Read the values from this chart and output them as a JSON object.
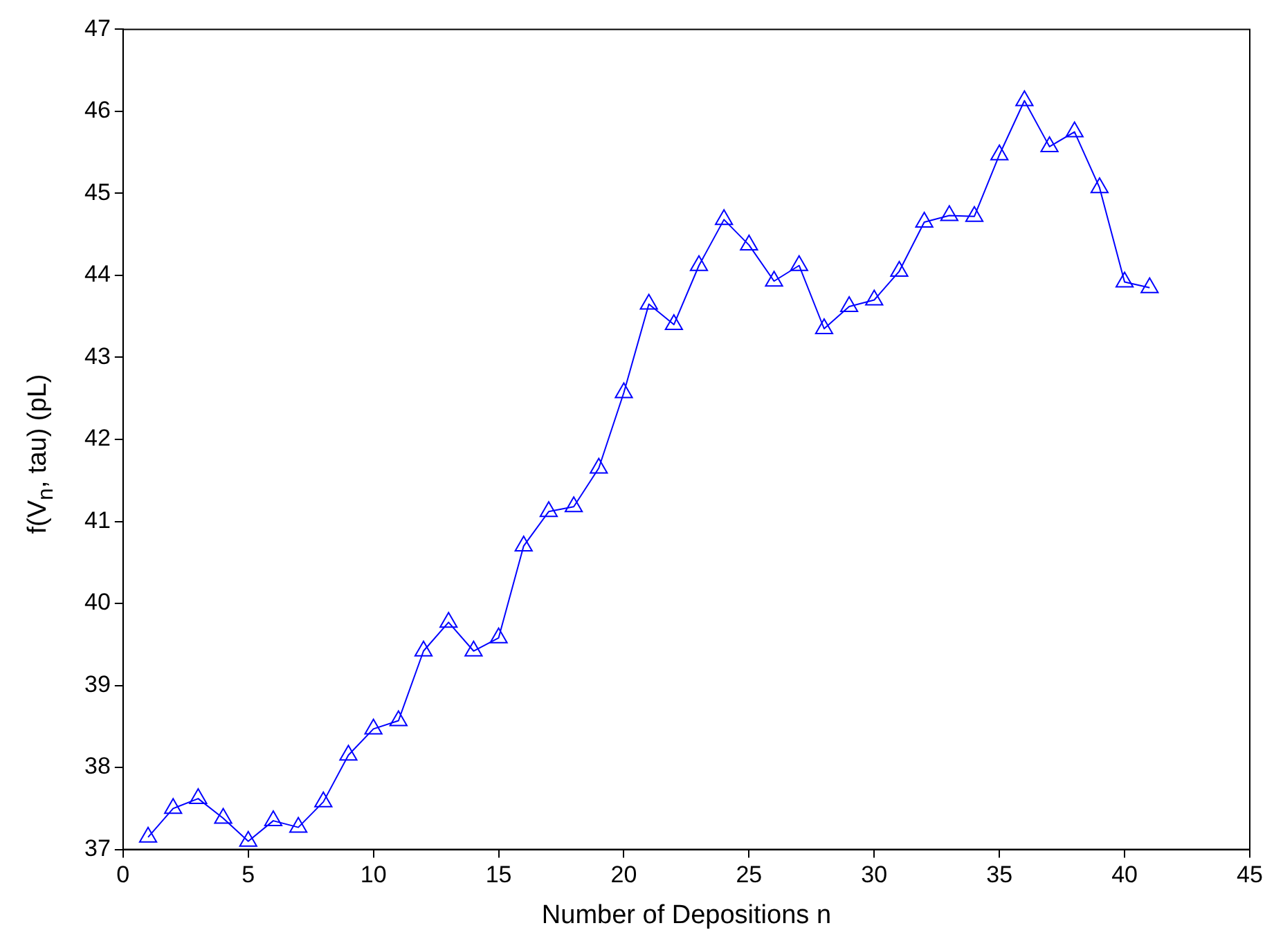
{
  "chart_data": {
    "type": "line",
    "xlabel": "Number of Depositions n",
    "ylabel": "f(V$_{n}$, tau) (pL)",
    "x": [
      1,
      2,
      3,
      4,
      5,
      6,
      7,
      8,
      9,
      10,
      11,
      12,
      13,
      14,
      15,
      16,
      17,
      18,
      19,
      20,
      21,
      22,
      23,
      24,
      25,
      26,
      27,
      28,
      29,
      30,
      31,
      32,
      33,
      34,
      35,
      36,
      37,
      38,
      39,
      40,
      41
    ],
    "series": [
      {
        "color": "#0000ff",
        "values": [
          37.15,
          37.5,
          37.62,
          37.38,
          37.1,
          37.35,
          37.27,
          37.58,
          38.15,
          38.47,
          38.57,
          39.42,
          39.77,
          39.42,
          39.58,
          40.7,
          41.12,
          41.18,
          41.65,
          42.57,
          43.65,
          43.4,
          44.12,
          44.68,
          44.37,
          43.93,
          44.12,
          43.35,
          43.62,
          43.7,
          44.05,
          44.65,
          44.73,
          44.72,
          45.47,
          46.13,
          45.57,
          45.75,
          45.07,
          43.92,
          43.85
        ]
      }
    ],
    "xlim": [
      0,
      45
    ],
    "xticks": [
      0,
      5,
      10,
      15,
      20,
      25,
      30,
      35,
      40,
      45
    ],
    "ylim": [
      37,
      47
    ],
    "yticks": [
      37,
      38,
      39,
      40,
      41,
      42,
      43,
      44,
      45,
      46,
      47
    ],
    "grid": false,
    "legend": false,
    "marker": "triangle",
    "line_style": "solid"
  }
}
